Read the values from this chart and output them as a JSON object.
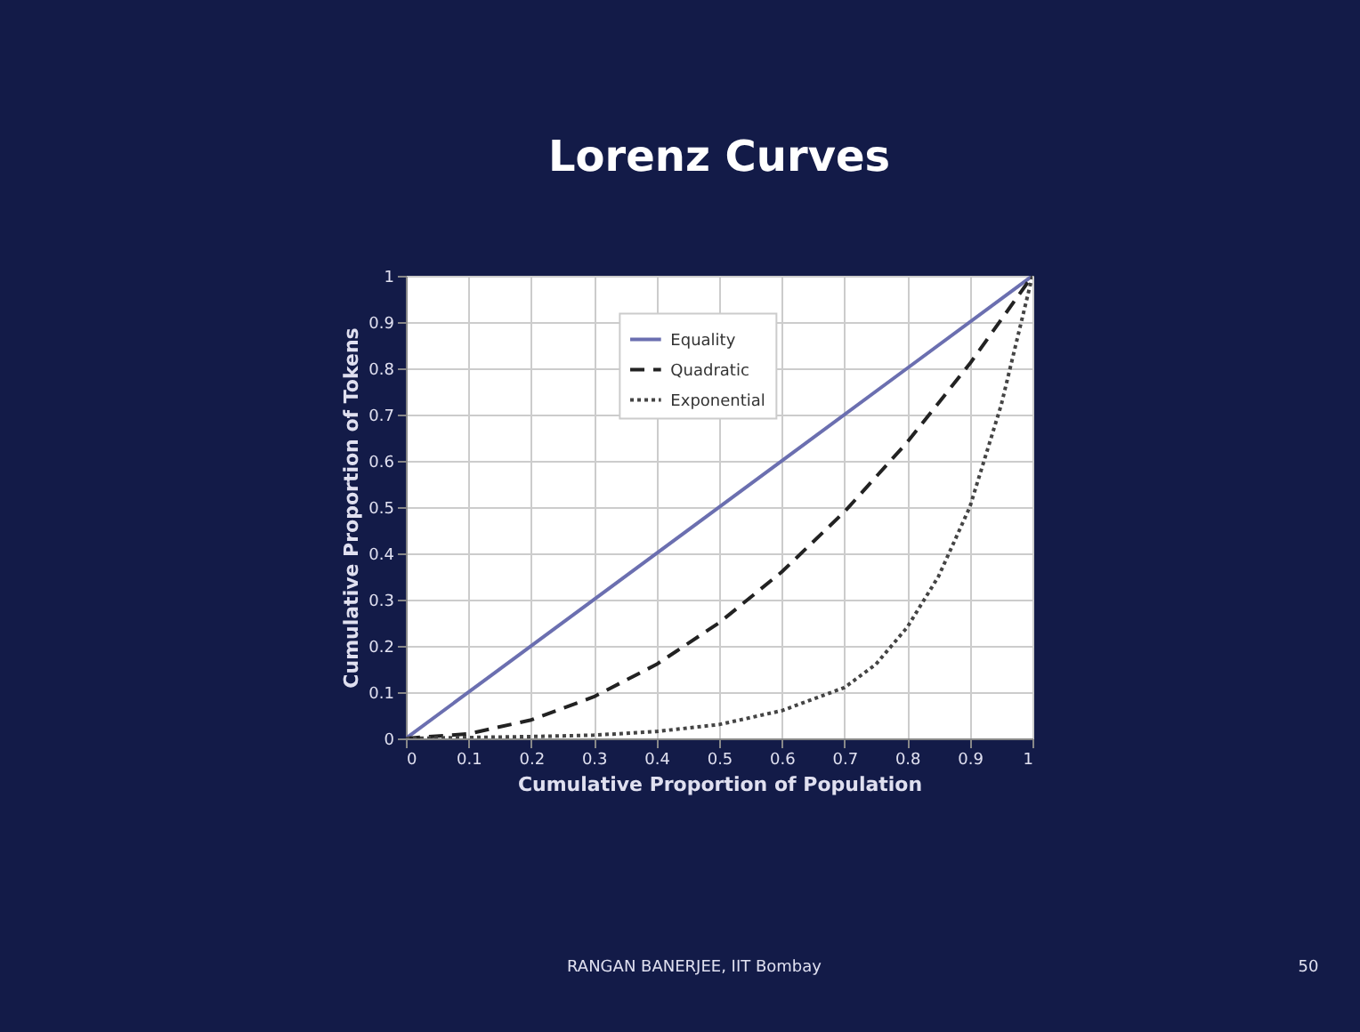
{
  "chart_data": {
    "type": "line",
    "title": "Lorenz Curves",
    "xlabel": "Cumulative Proportion of Population",
    "ylabel": "Cumulative Proportion of Tokens",
    "series": [
      {
        "name": "Equality",
        "color": "#6b6fb0",
        "line_style": "solid",
        "x": [
          0,
          1
        ],
        "values": [
          0,
          1
        ]
      },
      {
        "name": "Quadratic",
        "color": "#222222",
        "line_style": "dashed",
        "x": [
          0,
          0.1,
          0.2,
          0.3,
          0.4,
          0.5,
          0.6,
          0.7,
          0.8,
          0.9,
          1
        ],
        "values": [
          0,
          0.01,
          0.04,
          0.09,
          0.16,
          0.25,
          0.36,
          0.49,
          0.64,
          0.81,
          1
        ]
      },
      {
        "name": "Exponential",
        "color": "#444444",
        "line_style": "dotted",
        "x": [
          0,
          0.1,
          0.2,
          0.3,
          0.4,
          0.5,
          0.6,
          0.7,
          0.75,
          0.8,
          0.85,
          0.9,
          0.95,
          1
        ],
        "values": [
          0,
          0.002,
          0.004,
          0.007,
          0.015,
          0.03,
          0.06,
          0.11,
          0.16,
          0.24,
          0.35,
          0.5,
          0.72,
          1
        ]
      }
    ],
    "xlim": [
      0,
      1
    ],
    "ylim": [
      0,
      1
    ],
    "xticks": [
      0,
      0.1,
      0.2,
      0.3,
      0.4,
      0.5,
      0.6,
      0.7,
      0.8,
      0.9,
      1
    ],
    "yticks": [
      0,
      0.1,
      0.2,
      0.3,
      0.4,
      0.5,
      0.6,
      0.7,
      0.8,
      0.9,
      1
    ],
    "grid": true,
    "legend": "top left",
    "marker": "none",
    "annotations": [
      "RANGAN BANERJEE,  IIT Bombay",
      "50"
    ]
  }
}
